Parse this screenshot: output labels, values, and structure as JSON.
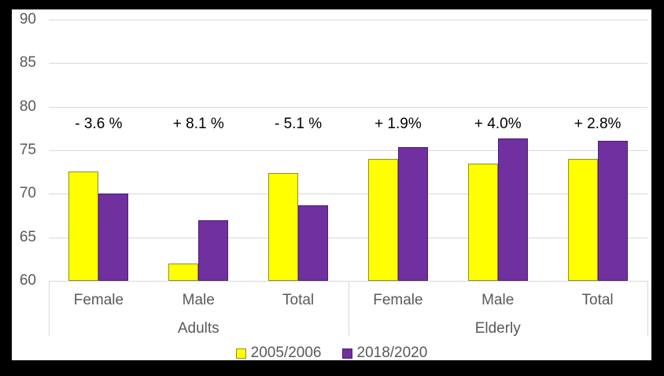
{
  "chart_data": {
    "type": "bar",
    "title": "",
    "categories": [
      "Female",
      "Male",
      "Total",
      "Female",
      "Male",
      "Total"
    ],
    "group_labels": [
      "Adults",
      "Elderly"
    ],
    "series": [
      {
        "name": "2005/2006",
        "color": "#FFFF00",
        "border_color": "#8F8F27",
        "values": [
          72.6,
          62.0,
          72.4,
          74.0,
          73.5,
          74.0
        ]
      },
      {
        "name": "2018/2020",
        "color": "#7030A0",
        "border_color": "#4A2170",
        "values": [
          70.0,
          67.0,
          68.7,
          75.4,
          76.4,
          76.1
        ]
      }
    ],
    "annotations": [
      "- 3.6 %",
      "+ 8.1 %",
      "- 5.1 %",
      "+ 1.9%",
      "+ 4.0%",
      "+ 2.8%"
    ],
    "ylim": [
      60,
      90
    ],
    "yticks": [
      90,
      85,
      80,
      75,
      70,
      65,
      60
    ],
    "grid": true,
    "legend_position": "bottom",
    "colors": {
      "grid": "#D9D9D9",
      "axis_text": "#595959",
      "annotation_text": "#000000",
      "background": "#FFFFFF",
      "frame": "#000000"
    }
  }
}
